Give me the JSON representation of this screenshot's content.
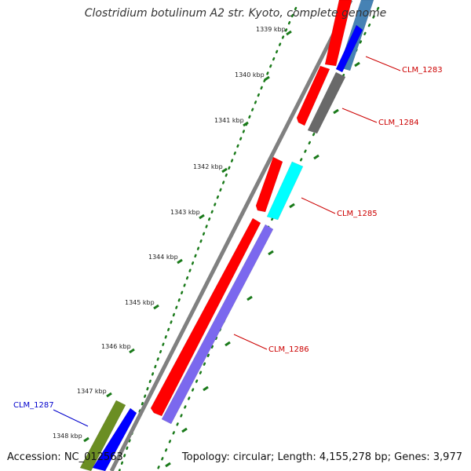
{
  "title": "Clostridium botulinum A2 str. Kyoto, complete genome",
  "footer": {
    "accession": "Accession: NC_012563",
    "topology": "Topology: circular; Length: 4,155,278 bp; Genes: 3,977"
  },
  "ruler": {
    "ticks": [
      "1339 kbp",
      "1340 kbp",
      "1341 kbp",
      "1342 kbp",
      "1343 kbp",
      "1344 kbp",
      "1345 kbp",
      "1346 kbp",
      "1347 kbp",
      "1348 kbp"
    ]
  },
  "colors": {
    "forward_cds": "#ff0000",
    "backbone": "#808080",
    "ruler": "#1a7a1a",
    "label_forward": "#cc0000",
    "label_reverse": "#0000cc",
    "gene_CLM_1283": "#4682b4",
    "gene_CLM_1284": "#696969",
    "gene_CLM_1285": "#00ffff",
    "gene_CLM_1286": "#7b68ee",
    "gene_CLM_1287": "#6b8e23",
    "gene_blue": "#0000ff"
  },
  "genes": [
    {
      "id": "CLM_1283",
      "label": "CLM_1283",
      "strand": "reverse"
    },
    {
      "id": "CLM_1284",
      "label": "CLM_1284",
      "strand": "reverse"
    },
    {
      "id": "CLM_1285",
      "label": "CLM_1285",
      "strand": "reverse"
    },
    {
      "id": "CLM_1286",
      "label": "CLM_1286",
      "strand": "reverse"
    },
    {
      "id": "CLM_1287",
      "label": "CLM_1287",
      "strand": "forward"
    }
  ]
}
